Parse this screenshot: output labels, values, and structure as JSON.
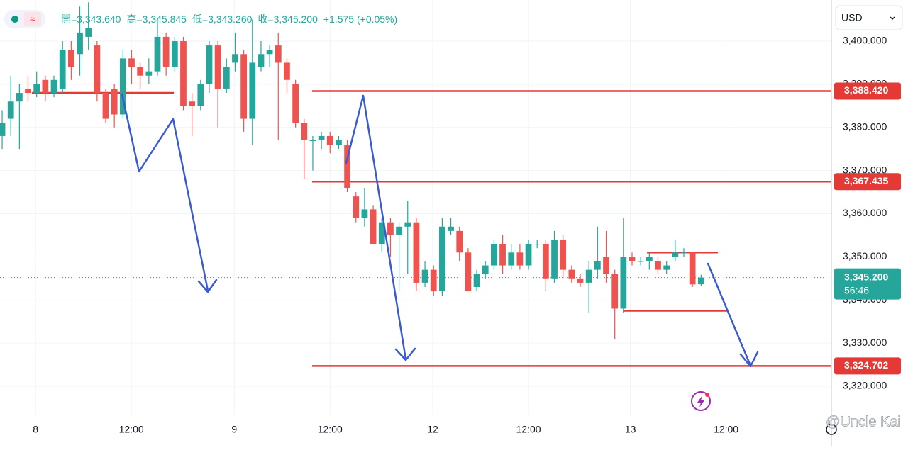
{
  "chart_data": {
    "type": "candlestick",
    "header": [
      "開=3,343.640",
      "高=3,345.845",
      "低=3,343.260",
      "收=3,345.200",
      "+1.575 (+0.05%)"
    ],
    "currency": "USD",
    "watermark": "@Uncle Kai",
    "up_color": "#26a69a",
    "down_color": "#ef5350",
    "grid": true,
    "ylim": [
      3313.43,
      3409.53
    ],
    "yticks": [
      {
        "value": 3320,
        "label": "3,320.000"
      },
      {
        "value": 3330,
        "label": "3,330.000"
      },
      {
        "value": 3340,
        "label": "3,340.000"
      },
      {
        "value": 3350,
        "label": "3,350.000"
      },
      {
        "value": 3360,
        "label": "3,360.000"
      },
      {
        "value": 3370,
        "label": "3,370.000"
      },
      {
        "value": 3380,
        "label": "3,380.000"
      },
      {
        "value": 3390,
        "label": "3,390.000"
      },
      {
        "value": 3400,
        "label": "3,400.000"
      }
    ],
    "xlim": [
      -0.25,
      96.1
    ],
    "xticks": [
      {
        "value": 3.87,
        "label": "8"
      },
      {
        "value": 14.97,
        "label": "12:00"
      },
      {
        "value": 26.9,
        "label": "9"
      },
      {
        "value": 38.0,
        "label": "12:00"
      },
      {
        "value": 49.9,
        "label": "12"
      },
      {
        "value": 61.0,
        "label": "12:00"
      },
      {
        "value": 72.8,
        "label": "13"
      },
      {
        "value": 83.9,
        "label": "12:00"
      }
    ],
    "open": [
      3378,
      3382,
      3386,
      3389,
      3388,
      3391,
      3388,
      3389,
      3398,
      3397,
      3401,
      3399,
      3388,
      3389,
      3383,
      3396,
      3394,
      3392,
      3393,
      3401,
      3394,
      3400,
      3386,
      3385,
      3390,
      3399,
      3389,
      3395,
      3397,
      3382,
      3394,
      3397,
      3399,
      3395,
      3390,
      3381,
      3377,
      3377,
      3378,
      3376,
      3376,
      3364,
      3359,
      3361,
      3353,
      3358,
      3355,
      3357,
      3358,
      3344,
      3347,
      3342,
      3356,
      3356,
      3351,
      3343,
      3346,
      3348,
      3353,
      3348,
      3351,
      3348,
      3353,
      3353,
      3345,
      3354,
      3347,
      3345,
      3344,
      3347,
      3350,
      3346,
      3338,
      3350,
      3349,
      3349,
      3349,
      3347,
      3350,
      3351,
      3351,
      3343.64
    ],
    "high": [
      3384,
      3392,
      3390,
      3392,
      3393,
      3392,
      3392,
      3400,
      3400,
      3408,
      3409,
      3400,
      3389,
      3390,
      3398,
      3398,
      3395,
      3396,
      3405,
      3402,
      3401,
      3401,
      3388,
      3391,
      3400,
      3400,
      3396,
      3402,
      3398,
      3405,
      3400,
      3399,
      3402,
      3396,
      3391,
      3382,
      3378,
      3379,
      3379,
      3378,
      3377,
      3365,
      3366,
      3362,
      3359,
      3359,
      3358,
      3363,
      3359,
      3349,
      3348,
      3359,
      3359,
      3357,
      3352,
      3347,
      3349,
      3354,
      3355,
      3353,
      3353,
      3354,
      3354,
      3354,
      3356,
      3355,
      3348,
      3346,
      3349,
      3357,
      3356,
      3347,
      3359,
      3351,
      3350,
      3351,
      3350,
      3349,
      3354,
      3352,
      3351,
      3345.845
    ],
    "low": [
      3375,
      3378,
      3375,
      3386,
      3387,
      3386,
      3387,
      3388,
      3391,
      3392,
      3398,
      3386,
      3381,
      3380,
      3382,
      3390,
      3389,
      3390,
      3392,
      3392,
      3393,
      3384,
      3378,
      3384,
      3388,
      3380,
      3388,
      3393,
      3379,
      3376,
      3393,
      3394,
      3377,
      3388,
      3380,
      3368,
      3370,
      3375,
      3374,
      3375,
      3365,
      3358,
      3357,
      3353,
      3351,
      3350,
      3342,
      3346,
      3342,
      3343,
      3341,
      3341,
      3355,
      3349,
      3342,
      3342,
      3345,
      3347,
      3346,
      3347,
      3347,
      3347,
      3352,
      3342,
      3344,
      3345,
      3344,
      3343,
      3337,
      3345,
      3344,
      3331,
      3337,
      3348,
      3348,
      3347,
      3346,
      3346,
      3349,
      3350,
      3343,
      3343.26
    ],
    "close": [
      3381,
      3386,
      3388,
      3388,
      3390,
      3388,
      3391,
      3398,
      3394,
      3402,
      3403,
      3388,
      3382,
      3383,
      3396,
      3394,
      3392,
      3393,
      3401,
      3394,
      3400,
      3385,
      3385,
      3390,
      3399,
      3389,
      3394,
      3397,
      3382,
      3395,
      3397,
      3398,
      3395,
      3391,
      3381,
      3377,
      3377,
      3378,
      3376,
      3377,
      3366,
      3359,
      3361,
      3353,
      3358,
      3355,
      3357,
      3358,
      3344,
      3347,
      3342,
      3357,
      3357,
      3351,
      3342,
      3346,
      3348,
      3353,
      3348,
      3351,
      3348,
      3353,
      3353,
      3345,
      3354,
      3347,
      3345,
      3344,
      3347,
      3349,
      3346,
      3338,
      3350,
      3349,
      3349,
      3350,
      3347,
      3348,
      3351,
      3351,
      3343.6,
      3345.2
    ],
    "level_color": "#e53935",
    "levels": [
      {
        "value": 3388.42,
        "label": "3,388.420"
      },
      {
        "value": 3367.435,
        "label": "3,367.435"
      },
      {
        "value": 3324.702,
        "label": "3,324.702"
      }
    ],
    "short_levels": [
      3388.0,
      3351.0,
      3337.5
    ],
    "last": {
      "value": 3345.2,
      "label": "3,345.200",
      "countdown": "56:46"
    }
  }
}
